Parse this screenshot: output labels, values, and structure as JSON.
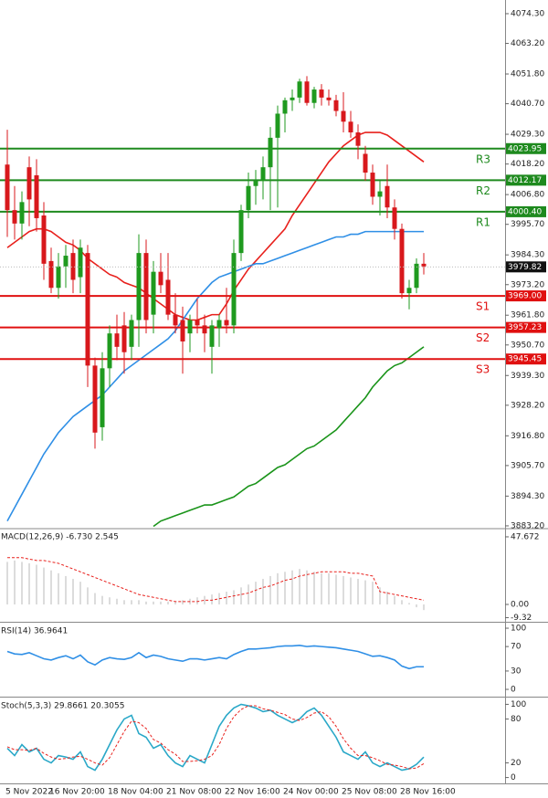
{
  "chart_data": [
    {
      "type": "candlestick",
      "categories": [
        "5 Nov 2022",
        null,
        null,
        null,
        null,
        null,
        "16 Nov 20:00",
        null,
        null,
        null,
        null,
        null,
        null,
        null,
        "18 Nov 04:00",
        null,
        null,
        null,
        null,
        null,
        null,
        null,
        "21 Nov 08:00",
        null,
        null,
        null,
        null,
        null,
        null,
        null,
        "22 Nov 16:00",
        null,
        null,
        null,
        null,
        null,
        null,
        null,
        "24 Nov 00:00",
        null,
        null,
        null,
        null,
        null,
        null,
        null,
        "25 Nov 08:00",
        null,
        null,
        null,
        null,
        null,
        null,
        null,
        "28 Nov 16:00",
        null,
        null,
        null
      ],
      "open": [
        4018,
        4001,
        3996,
        4017,
        4014,
        3999,
        3982,
        3972,
        3980,
        3985,
        3976,
        3985,
        3943,
        3920,
        3942,
        3955,
        3958,
        3950,
        3960,
        3985,
        3962,
        3978,
        3975,
        3962,
        3960,
        3955,
        3960,
        3958,
        3950,
        3957,
        3960,
        3958,
        3985,
        4001,
        4010,
        4012,
        4017,
        4028,
        4037,
        4042,
        4043,
        4049,
        4041,
        4046,
        4043,
        4042,
        4038,
        4034,
        4030,
        4022,
        4015,
        4006,
        4010,
        4002,
        3994,
        3970,
        3972,
        3981
      ],
      "high": [
        4031,
        4010,
        4008,
        4021,
        4020,
        4004,
        3987,
        3985,
        3988,
        3990,
        3990,
        3988,
        3946,
        3948,
        3958,
        3962,
        3963,
        3962,
        3992,
        3990,
        3982,
        3985,
        3985,
        3970,
        3965,
        3962,
        3968,
        3962,
        3960,
        3962,
        3972,
        3990,
        4003,
        4015,
        4016,
        4021,
        4032,
        4040,
        4043,
        4046,
        4050,
        4051,
        4047,
        4048,
        4046,
        4044,
        4045,
        4038,
        4033,
        4025,
        4018,
        4012,
        4018,
        4005,
        3996,
        3975,
        3983,
        3985
      ],
      "low": [
        3991,
        3990,
        3990,
        3995,
        3993,
        3975,
        3970,
        3968,
        3972,
        3970,
        3970,
        3935,
        3912,
        3915,
        3935,
        3945,
        3940,
        3945,
        3950,
        3955,
        3955,
        3970,
        3960,
        3955,
        3940,
        3948,
        3955,
        3948,
        3940,
        3950,
        3955,
        3955,
        3982,
        3998,
        4003,
        4005,
        4001,
        4002,
        4030,
        4038,
        4041,
        4040,
        4039,
        4040,
        4040,
        4036,
        4030,
        4028,
        4020,
        4012,
        4003,
        3999,
        3998,
        3990,
        3968,
        3964,
        3970,
        3977
      ],
      "close": [
        4001,
        3996,
        4004,
        4005,
        3998,
        3981,
        3972,
        3980,
        3984,
        3975,
        3987,
        3943,
        3918,
        3942,
        3955,
        3950,
        3948,
        3960,
        3985,
        3960,
        3978,
        3973,
        3962,
        3958,
        3952,
        3960,
        3958,
        3955,
        3958,
        3960,
        3958,
        3985,
        4001,
        4010,
        4012,
        4017,
        4028,
        4037,
        4042,
        4043,
        4049,
        4041,
        4046,
        4043,
        4042,
        4038,
        4034,
        4030,
        4025,
        4015,
        4006,
        4008,
        4002,
        3994,
        3970,
        3972,
        3981,
        3980
      ],
      "up_color": "#1f9a1f",
      "down_color": "#d8181c",
      "series": [
        {
          "color": "#e8201c",
          "values": [
            3987,
            3989,
            3991,
            3993,
            3994,
            3994,
            3993,
            3991,
            3989,
            3988,
            3986,
            3983,
            3981,
            3979,
            3977,
            3976,
            3974,
            3973,
            3972,
            3970,
            3968,
            3966,
            3964,
            3962,
            3961,
            3960,
            3960,
            3961,
            3962,
            3962,
            3966,
            3971,
            3975,
            3979,
            3982,
            3985,
            3988,
            3991,
            3994,
            3999,
            4003,
            4007,
            4011,
            4015,
            4019,
            4022,
            4025,
            4027,
            4029,
            4030,
            4030,
            4030,
            4029,
            4027,
            4025,
            4023,
            4021,
            4019
          ]
        },
        {
          "color": "#2f8fe6",
          "values": [
            3885,
            3890,
            3895,
            3900,
            3905,
            3910,
            3914,
            3918,
            3921,
            3924,
            3926,
            3928,
            3930,
            3932,
            3935,
            3938,
            3941,
            3943,
            3945,
            3947,
            3949,
            3951,
            3953,
            3956,
            3960,
            3964,
            3968,
            3971,
            3974,
            3976,
            3977,
            3978,
            3979,
            3980,
            3981,
            3981,
            3982,
            3983,
            3984,
            3985,
            3986,
            3987,
            3988,
            3989,
            3990,
            3991,
            3991,
            3992,
            3992,
            3993,
            3993,
            3993,
            3993,
            3993,
            3993,
            3993,
            3993,
            3993
          ]
        },
        {
          "color": "#1a941a",
          "values": [
            null,
            null,
            null,
            null,
            null,
            null,
            null,
            null,
            null,
            null,
            null,
            null,
            null,
            null,
            null,
            null,
            null,
            null,
            null,
            null,
            3883,
            3885,
            3886,
            3887,
            3888,
            3889,
            3890,
            3891,
            3891,
            3892,
            3893,
            3894,
            3896,
            3898,
            3899,
            3901,
            3903,
            3905,
            3906,
            3908,
            3910,
            3912,
            3913,
            3915,
            3917,
            3919,
            3922,
            3925,
            3928,
            3931,
            3935,
            3938,
            3941,
            3943,
            3944,
            3946,
            3948,
            3950
          ]
        }
      ],
      "levels": [
        {
          "name": "R3",
          "value": 4023.95,
          "value_label": "4023.95",
          "color": "#1e8a1e"
        },
        {
          "name": "R2",
          "value": 4012.17,
          "value_label": "4012.17",
          "color": "#1e8a1e"
        },
        {
          "name": "R1",
          "value": 4000.4,
          "value_label": "4000.40",
          "color": "#1e8a1e"
        },
        {
          "name": "S1",
          "value": 3969.0,
          "value_label": "3969.00",
          "color": "#e01010"
        },
        {
          "name": "S2",
          "value": 3957.23,
          "value_label": "3957.23",
          "color": "#e01010"
        },
        {
          "name": "S3",
          "value": 3945.45,
          "value_label": "3945.45",
          "color": "#e01010"
        }
      ],
      "last_price": 3979.82,
      "ylim": [
        3882.5,
        4079.4
      ],
      "yticks": [
        {
          "value": 4074.3,
          "label": "4074.30"
        },
        {
          "value": 4063.2,
          "label": "4063.20"
        },
        {
          "value": 4051.8,
          "label": "4051.80"
        },
        {
          "value": 4040.7,
          "label": "4040.70"
        },
        {
          "value": 4029.3,
          "label": "4029.30"
        },
        {
          "value": 4018.2,
          "label": "4018.20"
        },
        {
          "value": 4006.8,
          "label": "4006.80"
        },
        {
          "value": 3995.7,
          "label": "3995.70"
        },
        {
          "value": 3984.3,
          "label": "3984.30"
        },
        {
          "value": 3973.2,
          "label": "3973.20"
        },
        {
          "value": 3961.8,
          "label": "3961.80"
        },
        {
          "value": 3950.7,
          "label": "3950.70"
        },
        {
          "value": 3939.3,
          "label": "3939.30"
        },
        {
          "value": 3928.2,
          "label": "3928.20"
        },
        {
          "value": 3916.8,
          "label": "3916.80"
        },
        {
          "value": 3905.7,
          "label": "3905.70"
        },
        {
          "value": 3894.3,
          "label": "3894.30"
        },
        {
          "value": 3883.2,
          "label": "3883.20"
        }
      ]
    },
    {
      "type": "combo",
      "title": "MACD(12,26,9) -6.730 2.545",
      "series": [
        {
          "kind": "bar",
          "color": "#b8b8b8",
          "values": [
            30,
            31,
            30,
            29,
            28,
            26,
            24,
            22,
            20,
            18,
            16,
            12,
            8,
            6,
            5,
            4,
            3,
            3,
            3,
            2,
            2,
            2,
            2,
            2,
            3,
            4,
            5,
            6,
            7,
            8,
            9,
            10,
            12,
            14,
            16,
            18,
            20,
            22,
            23,
            24,
            25,
            24,
            23,
            22,
            22,
            21,
            20,
            19,
            18,
            17,
            16,
            12,
            9,
            6,
            3,
            1,
            -2,
            -4
          ]
        },
        {
          "kind": "line",
          "dashed": true,
          "color": "#e8201c",
          "values": [
            33,
            33,
            33,
            32,
            31,
            31,
            30,
            29,
            27,
            25,
            23,
            21,
            19,
            17,
            15,
            13,
            11,
            9,
            7,
            6,
            5,
            4,
            3,
            2,
            2,
            2,
            2,
            3,
            3,
            4,
            5,
            6,
            7,
            8,
            10,
            12,
            13,
            15,
            17,
            18,
            20,
            21,
            22,
            23,
            23,
            23,
            23,
            22,
            22,
            21,
            20,
            9,
            8,
            7,
            6,
            5,
            4,
            3
          ]
        }
      ],
      "ylim": [
        -11.6,
        52.8
      ],
      "yticks": [
        47.672,
        {
          "value": 0,
          "label": "0.00"
        },
        -9.32
      ]
    },
    {
      "type": "combo",
      "title": "RSI(14) 36.9641",
      "series": [
        {
          "kind": "line",
          "dashed": false,
          "color": "#2f8fe6",
          "values": [
            62,
            58,
            57,
            60,
            55,
            50,
            48,
            52,
            55,
            50,
            56,
            45,
            40,
            48,
            52,
            50,
            49,
            52,
            60,
            52,
            56,
            54,
            50,
            48,
            46,
            50,
            50,
            48,
            50,
            52,
            50,
            57,
            62,
            66,
            66,
            67,
            68,
            70,
            71,
            71,
            72,
            70,
            71,
            70,
            69,
            68,
            66,
            64,
            62,
            58,
            54,
            55,
            52,
            48,
            38,
            34,
            37,
            37
          ]
        }
      ],
      "ylim": [
        -10.4,
        107.5
      ],
      "yticks": [
        100,
        70,
        30,
        0
      ]
    },
    {
      "type": "combo",
      "title": "Stoch(5,3,3) 29.8661 20.3055",
      "series": [
        {
          "kind": "line",
          "dashed": false,
          "color": "#2aa8c8",
          "values": [
            40,
            30,
            45,
            35,
            40,
            25,
            20,
            30,
            28,
            25,
            35,
            15,
            10,
            25,
            45,
            65,
            80,
            85,
            60,
            55,
            40,
            45,
            30,
            20,
            15,
            30,
            25,
            20,
            45,
            70,
            85,
            95,
            100,
            98,
            95,
            90,
            92,
            85,
            80,
            75,
            80,
            90,
            95,
            85,
            70,
            55,
            35,
            30,
            25,
            35,
            20,
            15,
            20,
            15,
            10,
            12,
            18,
            28
          ]
        },
        {
          "kind": "line",
          "dashed": true,
          "color": "#e8201c",
          "values": [
            42,
            38,
            38,
            37,
            40,
            33,
            28,
            25,
            26,
            28,
            29,
            25,
            20,
            17,
            27,
            45,
            63,
            77,
            75,
            67,
            52,
            47,
            38,
            32,
            22,
            22,
            23,
            25,
            30,
            45,
            67,
            83,
            93,
            98,
            98,
            94,
            92,
            89,
            86,
            80,
            78,
            82,
            88,
            90,
            83,
            70,
            53,
            40,
            30,
            30,
            27,
            23,
            18,
            17,
            15,
            12,
            13,
            19
          ]
        }
      ],
      "ylim": [
        -8,
        108
      ],
      "yticks": [
        100,
        80,
        20,
        0
      ]
    }
  ]
}
